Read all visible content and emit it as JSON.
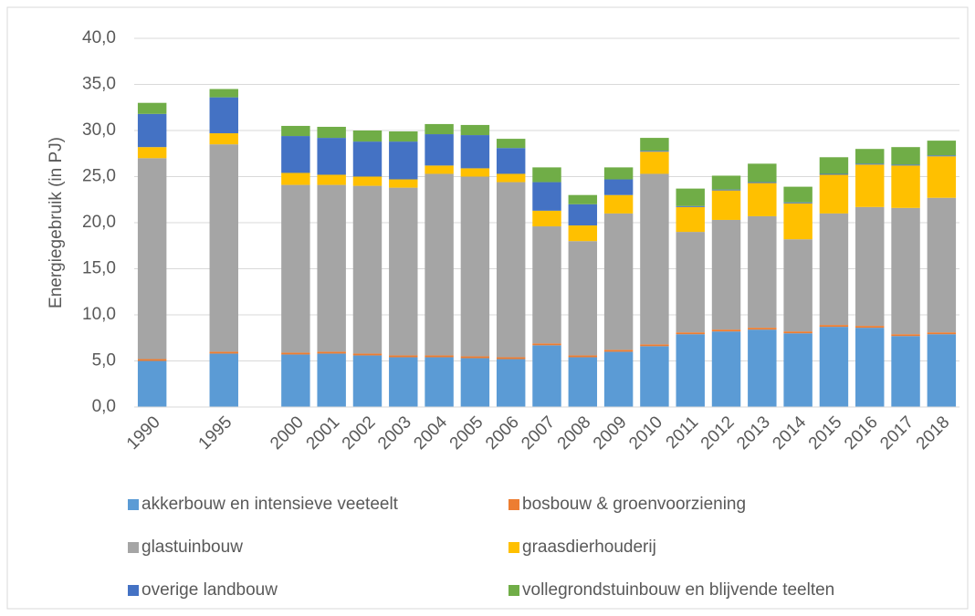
{
  "chart_data": {
    "type": "stacked_bar",
    "y_label": "Energiegebruik (in PJ)",
    "categories": [
      "1990",
      null,
      "1995",
      null,
      "2000",
      "2001",
      "2002",
      "2003",
      "2004",
      "2005",
      "2006",
      "2007",
      "2008",
      "2009",
      "2010",
      "2011",
      "2012",
      "2013",
      "2014",
      "2015",
      "2016",
      "2017",
      "2018"
    ],
    "series": [
      {
        "name": "akkerbouw en intensieve veeteelt",
        "color": "#5b9bd5",
        "values": [
          5.0,
          null,
          5.8,
          null,
          5.7,
          5.8,
          5.6,
          5.4,
          5.4,
          5.3,
          5.2,
          6.7,
          5.4,
          6.0,
          6.6,
          7.9,
          8.2,
          8.4,
          8.0,
          8.7,
          8.6,
          7.7,
          7.9
        ]
      },
      {
        "name": "bosbouw & groenvoorziening",
        "color": "#ed7d31",
        "values": [
          0.2,
          null,
          0.2,
          null,
          0.2,
          0.2,
          0.2,
          0.2,
          0.2,
          0.2,
          0.2,
          0.2,
          0.2,
          0.2,
          0.2,
          0.2,
          0.2,
          0.2,
          0.2,
          0.2,
          0.2,
          0.2,
          0.2
        ]
      },
      {
        "name": "glastuinbouw",
        "color": "#a5a5a5",
        "values": [
          21.8,
          null,
          22.5,
          null,
          18.2,
          18.1,
          18.2,
          18.2,
          19.7,
          19.5,
          19.0,
          12.7,
          12.4,
          14.8,
          18.5,
          10.9,
          11.9,
          12.1,
          10.0,
          12.1,
          12.9,
          13.7,
          14.6
        ]
      },
      {
        "name": "graasdierhouderij",
        "color": "#ffc000",
        "values": [
          1.2,
          null,
          1.2,
          null,
          1.3,
          1.1,
          1.0,
          0.9,
          0.9,
          0.9,
          0.9,
          1.7,
          1.7,
          2.0,
          2.4,
          2.7,
          3.2,
          3.6,
          3.9,
          4.2,
          4.6,
          4.6,
          4.5
        ]
      },
      {
        "name": "overige landbouw",
        "color": "#4472c4",
        "values": [
          3.6,
          null,
          3.9,
          null,
          4.0,
          4.0,
          3.8,
          4.1,
          3.4,
          3.6,
          2.8,
          3.1,
          2.3,
          1.7,
          0.1,
          0.1,
          0.1,
          0.1,
          0.1,
          0.1,
          0.1,
          0.1,
          0.1
        ]
      },
      {
        "name": "vollegrondstuinbouw en blijvende teelten",
        "color": "#70ad47",
        "values": [
          1.2,
          null,
          0.9,
          null,
          1.1,
          1.2,
          1.2,
          1.1,
          1.1,
          1.1,
          1.0,
          1.6,
          1.0,
          1.3,
          1.4,
          1.9,
          1.5,
          2.0,
          1.7,
          1.8,
          1.6,
          1.9,
          1.6
        ]
      }
    ],
    "ylim": [
      0,
      40
    ],
    "yticks": [
      {
        "value": 0,
        "label": "0,0"
      },
      {
        "value": 5,
        "label": "5,0"
      },
      {
        "value": 10,
        "label": "10,0"
      },
      {
        "value": 15,
        "label": "15,0"
      },
      {
        "value": 20,
        "label": "20,0"
      },
      {
        "value": 25,
        "label": "25,0"
      },
      {
        "value": 30,
        "label": "30,0"
      },
      {
        "value": 35,
        "label": "35,0"
      },
      {
        "value": 40,
        "label": "40,0"
      }
    ],
    "grid": true
  }
}
